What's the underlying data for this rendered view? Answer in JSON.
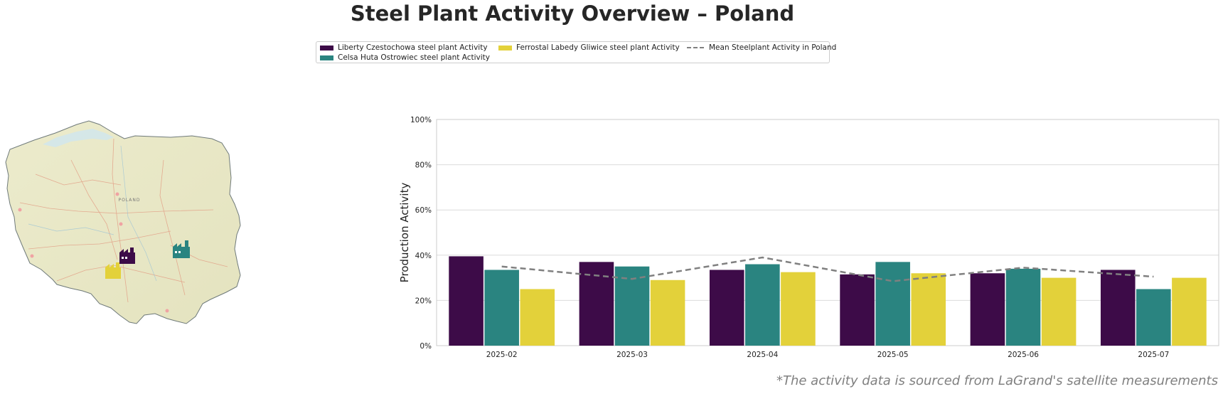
{
  "title": "Steel Plant Activity Overview – Poland",
  "footnote": "*The activity data is sourced from LaGrand's satellite measurements",
  "colors": {
    "liberty": "#3d0b48",
    "celsa": "#2a8480",
    "ferrostal": "#e3d13a",
    "mean": "#808080",
    "grid": "#dcdcdc"
  },
  "legend": {
    "liberty": "Liberty Czestochowa steel plant Activity",
    "celsa": "Celsa Huta Ostrowiec steel plant Activity",
    "ferrostal": "Ferrostal Labedy Gliwice steel plant Activity",
    "mean": "Mean Steelplant Activity in Poland"
  },
  "map": {
    "country_label": "POLAND",
    "icons": [
      "factory-icon",
      "factory-icon",
      "factory-icon"
    ]
  },
  "chart_data": {
    "type": "bar",
    "ylabel": "Production Activity",
    "xlabel": "",
    "ylim": [
      0,
      100
    ],
    "yticks": [
      "0%",
      "20%",
      "40%",
      "60%",
      "80%",
      "100%"
    ],
    "categories": [
      "2025-02",
      "2025-03",
      "2025-04",
      "2025-05",
      "2025-06",
      "2025-07"
    ],
    "series": [
      {
        "name": "Liberty Czestochowa steel plant Activity",
        "values": [
          39.5,
          37,
          33.5,
          31.5,
          32,
          33.5
        ]
      },
      {
        "name": "Celsa Huta Ostrowiec steel plant Activity",
        "values": [
          33.5,
          35,
          36,
          37,
          34,
          25
        ]
      },
      {
        "name": "Ferrostal Labedy Gliwice steel plant Activity",
        "values": [
          25,
          29,
          32.5,
          32,
          30,
          30
        ]
      }
    ],
    "line": {
      "name": "Mean Steelplant Activity in Poland",
      "values": [
        35,
        29.5,
        39,
        28.5,
        34.5,
        30.5
      ]
    },
    "grid": true,
    "legend_position": "top-center"
  }
}
